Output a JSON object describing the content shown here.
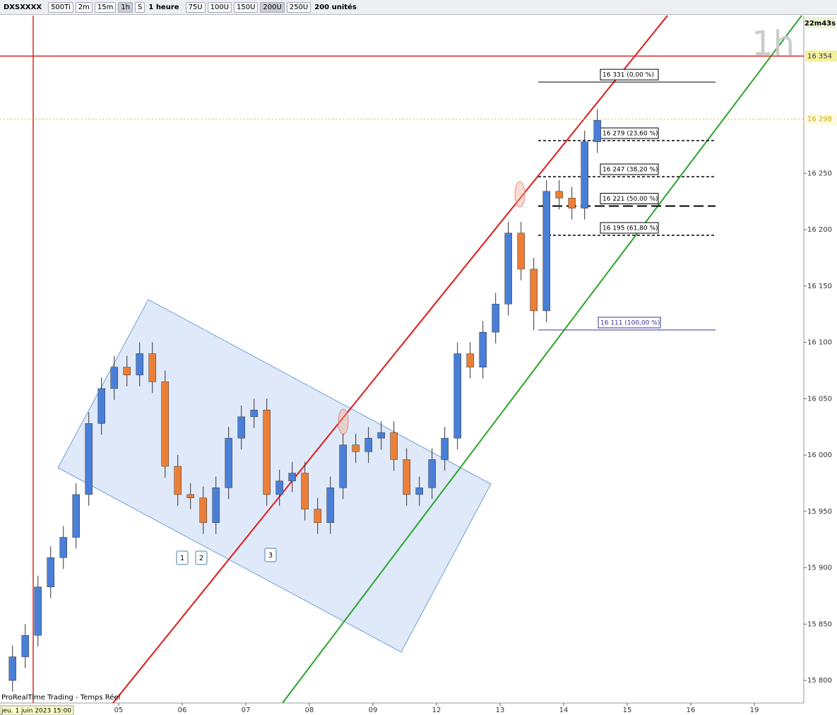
{
  "toolbar": {
    "symbol": "DXSXXXX",
    "period_buttons": [
      "500Ti",
      "2m",
      "15m",
      "1h",
      "S"
    ],
    "interval": "1 heure",
    "unit_buttons": [
      "75U",
      "100U",
      "150U",
      "200U",
      "250U"
    ],
    "units": "200 unités"
  },
  "chart_data": {
    "type": "candlestick",
    "watermark": "1h",
    "timer": "22m43s",
    "footer": "ProRealTime Trading - Temps Réel",
    "start_label": "jeu. 1 juin 2023 15:00",
    "x": [
      -0.67,
      -0.47,
      -0.27,
      -0.07,
      0.13,
      0.33,
      0.53,
      0.73,
      0.93,
      1.13,
      1.33,
      1.53,
      1.73,
      1.93,
      2.13,
      2.33,
      2.53,
      2.73,
      2.93,
      3.13,
      3.33,
      3.53,
      3.73,
      3.93,
      4.13,
      4.33,
      4.53,
      4.73,
      4.93,
      5.13,
      5.33,
      5.53,
      5.73,
      5.93,
      6.13,
      6.33,
      6.53,
      6.73,
      6.93,
      7.13,
      7.33,
      7.53,
      7.73,
      7.93,
      8.13,
      8.33,
      8.53
    ],
    "open": [
      15800,
      15821,
      15840,
      15883,
      15909,
      15927,
      15965,
      16028,
      16059,
      16078,
      16071,
      16090,
      16065,
      15990,
      15965,
      15962,
      15940,
      15971,
      16015,
      16034,
      16040,
      15965,
      15977,
      15984,
      15952,
      15940,
      15971,
      16009,
      16003,
      16015,
      16020,
      15996,
      15965,
      15971,
      15996,
      16015,
      16090,
      16078,
      16109,
      16134,
      16197,
      16165,
      16128,
      16234,
      16228,
      16219,
      16278
    ],
    "high": [
      15831,
      15850,
      15893,
      15919,
      15937,
      15975,
      16038,
      16069,
      16088,
      16088,
      16100,
      16100,
      16075,
      16000,
      15975,
      15972,
      15981,
      16025,
      16044,
      16050,
      16050,
      15987,
      15994,
      15994,
      15962,
      15981,
      16019,
      16019,
      16025,
      16030,
      16030,
      16006,
      15981,
      16006,
      16025,
      16100,
      16100,
      16119,
      16144,
      16207,
      16207,
      16175,
      16244,
      16244,
      16238,
      16288,
      16307
    ],
    "low": [
      15790,
      15811,
      15830,
      15873,
      15899,
      15917,
      15955,
      16018,
      16049,
      16061,
      16061,
      16055,
      15980,
      15955,
      15952,
      15930,
      15930,
      15961,
      16005,
      16024,
      15955,
      15955,
      15967,
      15942,
      15930,
      15930,
      15961,
      15993,
      15993,
      16005,
      15986,
      15955,
      15955,
      15961,
      15986,
      16005,
      16068,
      16068,
      16099,
      16124,
      16155,
      16111,
      16118,
      16218,
      16209,
      16209,
      16268
    ],
    "close": [
      15821,
      15840,
      15883,
      15909,
      15927,
      15965,
      16028,
      16059,
      16078,
      16071,
      16090,
      16065,
      15990,
      15965,
      15962,
      15940,
      15971,
      16015,
      16034,
      16040,
      15965,
      15977,
      15984,
      15952,
      15940,
      15971,
      16009,
      16003,
      16015,
      16020,
      15996,
      15965,
      15971,
      15996,
      16015,
      16090,
      16078,
      16109,
      16134,
      16197,
      16165,
      16128,
      16234,
      16228,
      16219,
      16278,
      16297
    ],
    "up_color": "#4a7fd8",
    "down_color": "#ec7f37",
    "xlim": [
      -0.867,
      11.778
    ],
    "xticks": [
      {
        "value": 1,
        "label": "05"
      },
      {
        "value": 2,
        "label": "06"
      },
      {
        "value": 3,
        "label": "07"
      },
      {
        "value": 4,
        "label": "08"
      },
      {
        "value": 5,
        "label": "09"
      },
      {
        "value": 6,
        "label": "12"
      },
      {
        "value": 7,
        "label": "13"
      },
      {
        "value": 8,
        "label": "14"
      },
      {
        "value": 9,
        "label": "15"
      },
      {
        "value": 10,
        "label": "16"
      },
      {
        "value": 11,
        "label": "19"
      }
    ],
    "ylim": [
      15780,
      16390
    ],
    "yticks": [
      {
        "value": 15800,
        "label": "15 800"
      },
      {
        "value": 15850,
        "label": "15 850"
      },
      {
        "value": 15900,
        "label": "15 900"
      },
      {
        "value": 15950,
        "label": "15 950"
      },
      {
        "value": 16000,
        "label": "16 000"
      },
      {
        "value": 16050,
        "label": "16 050"
      },
      {
        "value": 16100,
        "label": "16 100"
      },
      {
        "value": 16150,
        "label": "16 150"
      },
      {
        "value": 16200,
        "label": "16 200"
      },
      {
        "value": 16250,
        "label": "16 250"
      }
    ],
    "levels": [
      {
        "value": 16354,
        "label": "16 354",
        "color": "#e02020"
      },
      {
        "value": 16298,
        "label": "16 298",
        "color": "#e8c800"
      }
    ],
    "fibonacci": [
      {
        "value": 16331,
        "label": "16 331 (0,00 %)"
      },
      {
        "value": 16279,
        "label": "16 279 (23,60 %)"
      },
      {
        "value": 16247,
        "label": "16 247 (38,20 %)"
      },
      {
        "value": 16221,
        "label": "16 221 (50,00 %)"
      },
      {
        "value": 16195,
        "label": "16 195 (61,80 %)"
      },
      {
        "value": 16111,
        "label": "16 111 (100,00 %)"
      }
    ],
    "pattern_labels": [
      "1",
      "2",
      "3"
    ]
  }
}
